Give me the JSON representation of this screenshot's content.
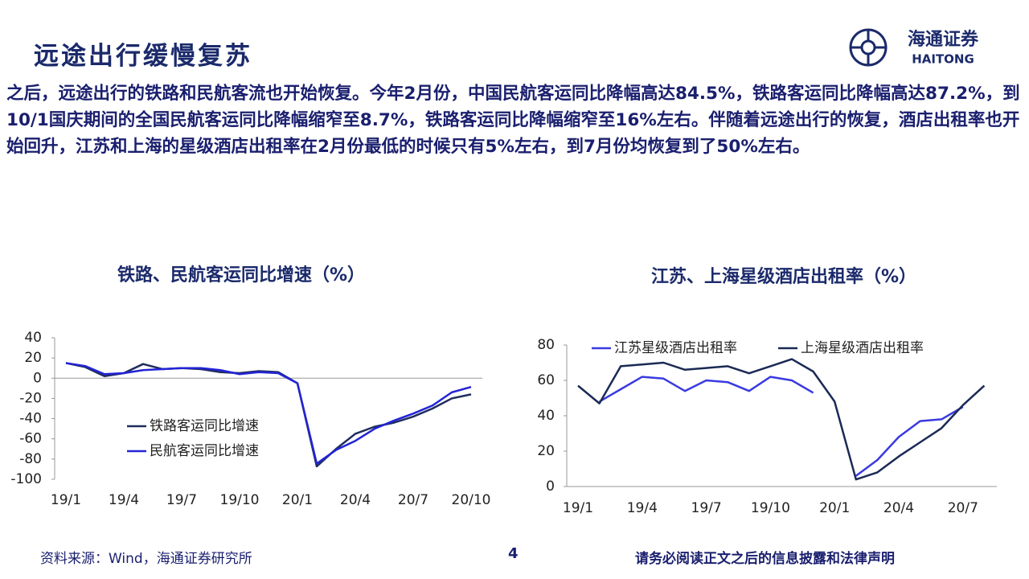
{
  "header": {
    "title": "远途出行缓慢复苏",
    "logo_cn": "海通证券",
    "logo_en": "HAITONG"
  },
  "body": "之后，远途出行的铁路和民航客流也开始恢复。今年2月份，中国民航客运同比降幅高达84.5%，铁路客运同比降幅高达87.2%，到10/1国庆期间的全国民航客运同比降幅缩窄至8.7%，铁路客运同比降幅缩窄至16%左右。伴随着远途出行的恢复，酒店出租率也开始回升，江苏和上海的星级酒店出租率在2月份最低的时候只有5%左右，到7月份均恢复到了50%左右。",
  "footer": {
    "source": "资料来源：Wind，海通证券研究所",
    "page": "4",
    "disclaimer": "请务必阅读正文之后的信息披露和法律声明"
  },
  "chart_data": [
    {
      "type": "line",
      "title": "铁路、民航客运同比增速（%）",
      "categories": [
        "19/1",
        null,
        null,
        "19/4",
        null,
        null,
        "19/7",
        null,
        null,
        "19/10",
        null,
        null,
        "20/1",
        null,
        null,
        "20/4",
        null,
        null,
        "20/7",
        null,
        null,
        "20/10"
      ],
      "series": [
        {
          "name": "铁路客运同比增速",
          "color": "#1f2d5c",
          "values": [
            15,
            11,
            2,
            5,
            14,
            9,
            10,
            9,
            6,
            5,
            7,
            6,
            -5,
            -87.2,
            -70,
            -55,
            -48,
            -44,
            -38,
            -30,
            -20,
            -16
          ]
        },
        {
          "name": "民航客运同比增速",
          "color": "#2323d6",
          "values": [
            15,
            12,
            4,
            5,
            8,
            9,
            10,
            10,
            8,
            4,
            6,
            5,
            -5,
            -84.5,
            -71,
            -62,
            -50,
            -42,
            -35,
            -27,
            -14,
            -8.7
          ]
        }
      ],
      "ylim": [
        -100,
        40
      ],
      "yticks": [
        -100,
        -80,
        -60,
        -40,
        -20,
        0,
        20,
        40
      ],
      "legend": "lower left"
    },
    {
      "type": "line",
      "title": "江苏、上海星级酒店出租率（%）",
      "categories": [
        "19/1",
        null,
        null,
        "19/4",
        null,
        null,
        "19/7",
        null,
        null,
        "19/10",
        null,
        null,
        "20/1",
        null,
        null,
        "20/4",
        null,
        null,
        "20/7",
        null
      ],
      "series": [
        {
          "name": "江苏星级酒店出租率",
          "color": "#3a3ae0",
          "values": [
            null,
            48,
            55,
            62,
            61,
            54,
            60,
            59,
            54,
            62,
            60,
            53,
            null,
            6,
            15,
            28,
            37,
            38,
            45,
            null
          ]
        },
        {
          "name": "上海星级酒店出租率",
          "color": "#1b2a55",
          "values": [
            57,
            47,
            68,
            69,
            70,
            66,
            67,
            68,
            64,
            68,
            72,
            65,
            48,
            4,
            8,
            17,
            25,
            33,
            46,
            57
          ]
        }
      ],
      "ylim": [
        0,
        80
      ],
      "yticks": [
        0,
        20,
        40,
        60,
        80
      ],
      "legend": "upper center"
    }
  ]
}
